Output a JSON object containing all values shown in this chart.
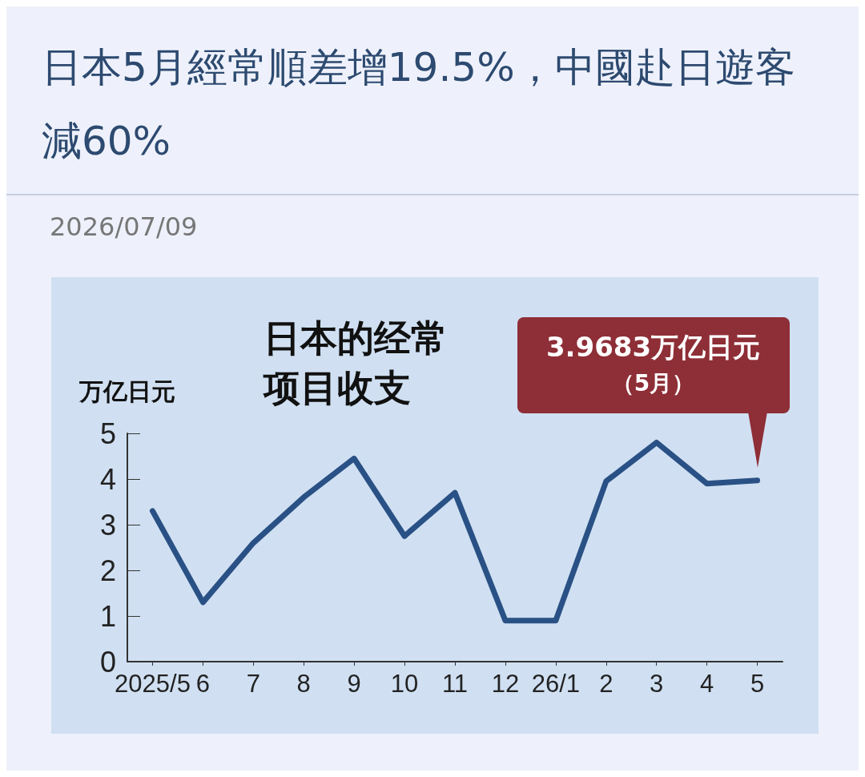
{
  "chart_data": {
    "type": "line",
    "title": "日本5月經常順差增19.5%，中國赴日遊客減60%",
    "subtitle": "日本的经常项目收支",
    "ylabel": "万亿日元",
    "categories": [
      "2025/5",
      "6",
      "7",
      "8",
      "9",
      "10",
      "11",
      "12",
      "26/1",
      "2",
      "3",
      "4",
      "5"
    ],
    "series": [
      {
        "color": "#2a5185",
        "values": [
          3.3,
          1.3,
          2.6,
          3.6,
          4.45,
          2.75,
          3.7,
          0.9,
          0.9,
          3.95,
          4.8,
          3.9,
          3.9683
        ]
      }
    ],
    "ylim": [
      0,
      5
    ],
    "yticks": [
      0,
      1,
      2,
      3,
      4,
      5
    ],
    "grid": false,
    "marker": "none",
    "line_style": "solid",
    "annotations": [
      "2026/07/09",
      "3.9683万亿日元",
      "（5月）"
    ]
  }
}
